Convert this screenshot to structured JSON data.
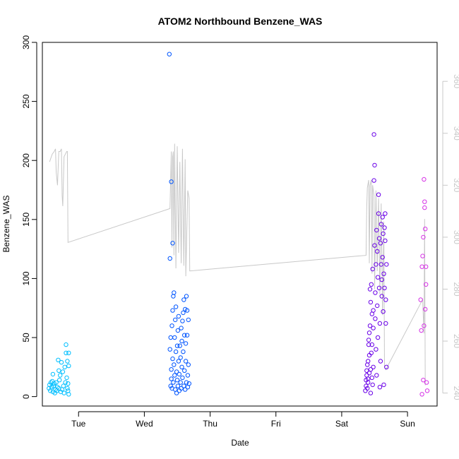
{
  "chart_data": {
    "type": "scatter",
    "title": "ATOM2 Northbound Benzene_WAS",
    "xlabel": "Date",
    "ylabel": "Benzene_WAS",
    "x_ticks": [
      "Tue",
      "Wed",
      "Thu",
      "Fri",
      "Sat",
      "Sun"
    ],
    "y_ticks": [
      0,
      50,
      100,
      150,
      200,
      250,
      300
    ],
    "y_right_ticks": [
      240,
      260,
      280,
      300,
      320,
      340,
      360
    ],
    "xlim_days": [
      -0.55,
      5.45
    ],
    "ylim": [
      -8,
      300
    ],
    "y_right_lim": [
      235,
      375
    ],
    "grid": false,
    "legend": "none",
    "point_colors": [
      "#00bfff",
      "#0055ff",
      "#6a00e8",
      "#d633e6"
    ],
    "line_color": "#c8c8c8",
    "line_series": {
      "name": "",
      "points": [
        [
          -0.44,
          329
        ],
        [
          -0.4,
          332
        ],
        [
          -0.37,
          333
        ],
        [
          -0.35,
          334
        ],
        [
          -0.34,
          325
        ],
        [
          -0.32,
          320
        ],
        [
          -0.3,
          333
        ],
        [
          -0.28,
          333
        ],
        [
          -0.26,
          334
        ],
        [
          -0.25,
          316
        ],
        [
          -0.24,
          312
        ],
        [
          -0.22,
          331
        ],
        [
          -0.2,
          332
        ],
        [
          -0.18,
          333
        ],
        [
          -0.17,
          333
        ],
        [
          -0.16,
          298
        ],
        [
          1.39,
          311
        ],
        [
          1.41,
          333
        ],
        [
          1.42,
          296
        ],
        [
          1.43,
          331
        ],
        [
          1.44,
          333
        ],
        [
          1.45,
          293
        ],
        [
          1.46,
          336
        ],
        [
          1.48,
          288
        ],
        [
          1.5,
          335
        ],
        [
          1.52,
          294
        ],
        [
          1.54,
          329
        ],
        [
          1.56,
          290
        ],
        [
          1.58,
          334
        ],
        [
          1.6,
          289
        ],
        [
          1.62,
          330
        ],
        [
          1.63,
          285
        ],
        [
          1.66,
          318
        ],
        [
          1.68,
          315
        ],
        [
          1.69,
          287
        ],
        [
          4.37,
          293
        ],
        [
          4.38,
          311
        ],
        [
          4.39,
          319
        ],
        [
          4.41,
          322
        ],
        [
          4.42,
          290
        ],
        [
          4.43,
          320
        ],
        [
          4.45,
          322
        ],
        [
          4.46,
          286
        ],
        [
          4.47,
          320
        ],
        [
          4.49,
          316
        ],
        [
          4.5,
          280
        ],
        [
          4.52,
          318
        ],
        [
          4.54,
          287
        ],
        [
          4.56,
          315
        ],
        [
          4.58,
          278
        ],
        [
          4.6,
          313
        ],
        [
          4.62,
          270
        ],
        [
          4.64,
          306
        ],
        [
          4.65,
          250
        ],
        [
          4.67,
          249
        ],
        [
          5.23,
          276
        ],
        [
          5.25,
          263
        ],
        [
          5.26,
          307
        ],
        [
          5.27,
          243
        ]
      ]
    },
    "points": [
      [
        -0.45,
        7,
        0
      ],
      [
        -0.44,
        10,
        0
      ],
      [
        -0.43,
        5,
        0
      ],
      [
        -0.42,
        12,
        0
      ],
      [
        -0.41,
        8,
        0
      ],
      [
        -0.4,
        13,
        0
      ],
      [
        -0.39,
        4,
        0
      ],
      [
        -0.39,
        19,
        0
      ],
      [
        -0.38,
        9,
        0
      ],
      [
        -0.37,
        11,
        0
      ],
      [
        -0.36,
        3,
        0
      ],
      [
        -0.35,
        6,
        0
      ],
      [
        -0.34,
        12,
        0
      ],
      [
        -0.33,
        5,
        0
      ],
      [
        -0.32,
        8,
        0
      ],
      [
        -0.31,
        31,
        0
      ],
      [
        -0.3,
        22,
        0
      ],
      [
        -0.3,
        7,
        0
      ],
      [
        -0.29,
        14,
        0
      ],
      [
        -0.28,
        18,
        0
      ],
      [
        -0.27,
        4,
        0
      ],
      [
        -0.26,
        29,
        0
      ],
      [
        -0.25,
        6,
        0
      ],
      [
        -0.24,
        21,
        0
      ],
      [
        -0.23,
        9,
        0
      ],
      [
        -0.22,
        3,
        0
      ],
      [
        -0.21,
        25,
        0
      ],
      [
        -0.2,
        12,
        0
      ],
      [
        -0.19,
        37,
        0
      ],
      [
        -0.19,
        44,
        0
      ],
      [
        -0.18,
        16,
        0
      ],
      [
        -0.17,
        7,
        0
      ],
      [
        -0.17,
        30,
        0
      ],
      [
        -0.16,
        11,
        0
      ],
      [
        -0.16,
        5,
        0
      ],
      [
        -0.15,
        26,
        0
      ],
      [
        -0.15,
        2,
        0
      ],
      [
        -0.15,
        37,
        0
      ],
      [
        1.38,
        290,
        1
      ],
      [
        1.39,
        117,
        1
      ],
      [
        1.41,
        182,
        1
      ],
      [
        1.43,
        130,
        1
      ],
      [
        1.39,
        40,
        1
      ],
      [
        1.4,
        50,
        1
      ],
      [
        1.4,
        9,
        1
      ],
      [
        1.41,
        15,
        1
      ],
      [
        1.41,
        23,
        1
      ],
      [
        1.42,
        60,
        1
      ],
      [
        1.42,
        7,
        1
      ],
      [
        1.43,
        73,
        1
      ],
      [
        1.43,
        32,
        1
      ],
      [
        1.44,
        85,
        1
      ],
      [
        1.44,
        12,
        1
      ],
      [
        1.45,
        88,
        1
      ],
      [
        1.45,
        27,
        1
      ],
      [
        1.46,
        50,
        1
      ],
      [
        1.46,
        18,
        1
      ],
      [
        1.47,
        65,
        1
      ],
      [
        1.47,
        6,
        1
      ],
      [
        1.48,
        76,
        1
      ],
      [
        1.48,
        38,
        1
      ],
      [
        1.49,
        21,
        1
      ],
      [
        1.49,
        3,
        1
      ],
      [
        1.5,
        43,
        1
      ],
      [
        1.5,
        14,
        1
      ],
      [
        1.51,
        56,
        1
      ],
      [
        1.51,
        9,
        1
      ],
      [
        1.52,
        30,
        1
      ],
      [
        1.52,
        68,
        1
      ],
      [
        1.53,
        19,
        1
      ],
      [
        1.53,
        5,
        1
      ],
      [
        1.54,
        43,
        1
      ],
      [
        1.55,
        12,
        1
      ],
      [
        1.55,
        33,
        1
      ],
      [
        1.56,
        58,
        1
      ],
      [
        1.56,
        7,
        1
      ],
      [
        1.57,
        25,
        1
      ],
      [
        1.57,
        47,
        1
      ],
      [
        1.58,
        64,
        1
      ],
      [
        1.58,
        16,
        1
      ],
      [
        1.59,
        71,
        1
      ],
      [
        1.59,
        38,
        1
      ],
      [
        1.6,
        9,
        1
      ],
      [
        1.6,
        82,
        1
      ],
      [
        1.61,
        52,
        1
      ],
      [
        1.61,
        22,
        1
      ],
      [
        1.62,
        6,
        1
      ],
      [
        1.62,
        74,
        1
      ],
      [
        1.63,
        30,
        1
      ],
      [
        1.63,
        45,
        1
      ],
      [
        1.64,
        12,
        1
      ],
      [
        1.64,
        85,
        1
      ],
      [
        1.65,
        52,
        1
      ],
      [
        1.65,
        73,
        1
      ],
      [
        1.66,
        8,
        1
      ],
      [
        1.66,
        18,
        1
      ],
      [
        1.67,
        65,
        1
      ],
      [
        1.67,
        27,
        1
      ],
      [
        1.68,
        11,
        1
      ],
      [
        4.36,
        5,
        2
      ],
      [
        4.37,
        9,
        2
      ],
      [
        4.37,
        14,
        2
      ],
      [
        4.38,
        18,
        2
      ],
      [
        4.38,
        22,
        2
      ],
      [
        4.39,
        7,
        2
      ],
      [
        4.39,
        27,
        2
      ],
      [
        4.4,
        12,
        2
      ],
      [
        4.4,
        30,
        2
      ],
      [
        4.41,
        44,
        2
      ],
      [
        4.41,
        48,
        2
      ],
      [
        4.42,
        20,
        2
      ],
      [
        4.42,
        54,
        2
      ],
      [
        4.43,
        91,
        2
      ],
      [
        4.43,
        60,
        2
      ],
      [
        4.44,
        3,
        2
      ],
      [
        4.44,
        80,
        2
      ],
      [
        4.45,
        37,
        2
      ],
      [
        4.45,
        95,
        2
      ],
      [
        4.46,
        16,
        2
      ],
      [
        4.46,
        70,
        2
      ],
      [
        4.47,
        108,
        2
      ],
      [
        4.47,
        10,
        2
      ],
      [
        4.48,
        58,
        2
      ],
      [
        4.48,
        25,
        2
      ],
      [
        4.49,
        183,
        2
      ],
      [
        4.49,
        222,
        2
      ],
      [
        4.5,
        196,
        2
      ],
      [
        4.5,
        128,
        2
      ],
      [
        4.51,
        88,
        2
      ],
      [
        4.51,
        66,
        2
      ],
      [
        4.52,
        112,
        2
      ],
      [
        4.52,
        40,
        2
      ],
      [
        4.53,
        141,
        2
      ],
      [
        4.53,
        18,
        2
      ],
      [
        4.54,
        123,
        2
      ],
      [
        4.54,
        77,
        2
      ],
      [
        4.55,
        101,
        2
      ],
      [
        4.55,
        50,
        2
      ],
      [
        4.56,
        155,
        2
      ],
      [
        4.56,
        171,
        2
      ],
      [
        4.57,
        134,
        2
      ],
      [
        4.57,
        92,
        2
      ],
      [
        4.58,
        62,
        2
      ],
      [
        4.58,
        8,
        2
      ],
      [
        4.59,
        130,
        2
      ],
      [
        4.59,
        30,
        2
      ],
      [
        4.6,
        146,
        2
      ],
      [
        4.6,
        112,
        2
      ],
      [
        4.61,
        99,
        2
      ],
      [
        4.61,
        85,
        2
      ],
      [
        4.62,
        152,
        2
      ],
      [
        4.62,
        118,
        2
      ],
      [
        4.63,
        72,
        2
      ],
      [
        4.63,
        138,
        2
      ],
      [
        4.64,
        104,
        2
      ],
      [
        4.64,
        10,
        2
      ],
      [
        4.65,
        143,
        2
      ],
      [
        4.65,
        92,
        2
      ],
      [
        4.66,
        132,
        2
      ],
      [
        4.66,
        155,
        2
      ],
      [
        4.67,
        82,
        2
      ],
      [
        4.67,
        62,
        2
      ],
      [
        4.68,
        112,
        2
      ],
      [
        4.68,
        25,
        2
      ],
      [
        4.4,
        15,
        2
      ],
      [
        4.42,
        35,
        2
      ],
      [
        4.44,
        23,
        2
      ],
      [
        4.46,
        44,
        2
      ],
      [
        4.48,
        73,
        2
      ],
      [
        5.2,
        82,
        3
      ],
      [
        5.21,
        56,
        3
      ],
      [
        5.22,
        2,
        3
      ],
      [
        5.22,
        110,
        3
      ],
      [
        5.23,
        119,
        3
      ],
      [
        5.24,
        135,
        3
      ],
      [
        5.24,
        14,
        3
      ],
      [
        5.25,
        60,
        3
      ],
      [
        5.25,
        184,
        3
      ],
      [
        5.26,
        165,
        3
      ],
      [
        5.26,
        160,
        3
      ],
      [
        5.27,
        142,
        3
      ],
      [
        5.27,
        74,
        3
      ],
      [
        5.28,
        110,
        3
      ],
      [
        5.28,
        95,
        3
      ],
      [
        5.29,
        12,
        3
      ],
      [
        5.3,
        5,
        3
      ]
    ]
  }
}
